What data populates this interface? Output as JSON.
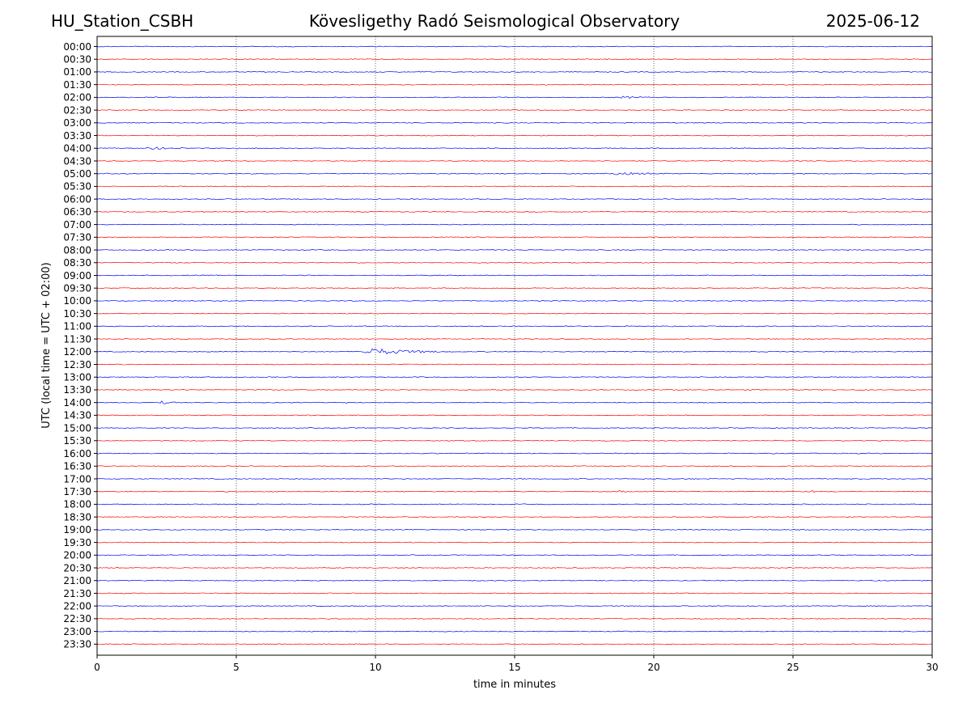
{
  "header": {
    "station": "HU_Station_CSBH",
    "title": "Kövesligethy Radó Seismological Observatory",
    "date": "2025-06-12"
  },
  "chart_data": {
    "type": "line",
    "title": "Kövesligethy Radó Seismological Observatory",
    "xlabel": "time in minutes",
    "ylabel": "UTC (local time = UTC + 02:00)",
    "xlim": [
      0,
      30
    ],
    "x_ticks": [
      0,
      5,
      10,
      15,
      20,
      25,
      30
    ],
    "x_tick_labels": [
      "0",
      "5",
      "10",
      "15",
      "20",
      "25",
      "30"
    ],
    "grid": "vertical dotted at 5, 10, 15, 20, 25",
    "colors": {
      "even_rows": "#0000ff",
      "odd_rows": "#ff0000",
      "grid": "#000000"
    },
    "rows": [
      "00:00",
      "00:30",
      "01:00",
      "01:30",
      "02:00",
      "02:30",
      "03:00",
      "03:30",
      "04:00",
      "04:30",
      "05:00",
      "05:30",
      "06:00",
      "06:30",
      "07:00",
      "07:30",
      "08:00",
      "08:30",
      "09:00",
      "09:30",
      "10:00",
      "10:30",
      "11:00",
      "11:30",
      "12:00",
      "12:30",
      "13:00",
      "13:30",
      "14:00",
      "14:30",
      "15:00",
      "15:30",
      "16:00",
      "16:30",
      "17:00",
      "17:30",
      "18:00",
      "18:30",
      "19:00",
      "19:30",
      "20:00",
      "20:30",
      "21:00",
      "21:30",
      "22:00",
      "22:30",
      "23:00",
      "23:30"
    ],
    "events": [
      {
        "row": "02:00",
        "start_min": 18.8,
        "end_min": 20.0,
        "amplitude": 0.25
      },
      {
        "row": "04:00",
        "start_min": 1.75,
        "end_min": 3.2,
        "amplitude": 0.35
      },
      {
        "row": "04:00",
        "start_min": 5.0,
        "end_min": 5.4,
        "amplitude": 0.15
      },
      {
        "row": "05:00",
        "start_min": 18.5,
        "end_min": 20.5,
        "amplitude": 0.3
      },
      {
        "row": "05:00",
        "start_min": 23.3,
        "end_min": 24.0,
        "amplitude": 0.12
      },
      {
        "row": "12:00",
        "start_min": 9.5,
        "end_min": 12.3,
        "amplitude": 0.9
      },
      {
        "row": "14:00",
        "start_min": 2.2,
        "end_min": 2.9,
        "amplitude": 0.4
      },
      {
        "row": "14:00",
        "start_min": 8.9,
        "end_min": 9.2,
        "amplitude": 0.3
      },
      {
        "row": "17:30",
        "start_min": 18.7,
        "end_min": 19.0,
        "amplitude": 0.4
      },
      {
        "row": "17:30",
        "start_min": 25.65,
        "end_min": 25.8,
        "amplitude": 0.55
      },
      {
        "row": "13:30",
        "start_min": 27.4,
        "end_min": 27.7,
        "amplitude": 0.2
      }
    ]
  }
}
